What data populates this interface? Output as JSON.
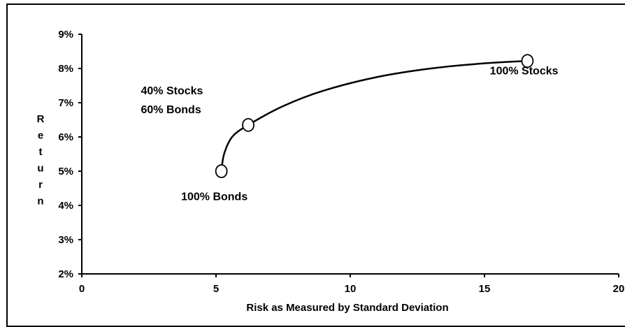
{
  "chart_data": {
    "type": "line",
    "title": "",
    "xlabel": "Risk as Measured by Standard Deviation",
    "ylabel": "Return",
    "ylabel_letters": [
      "R",
      "e",
      "t",
      "u",
      "r",
      "n"
    ],
    "xlim": [
      0,
      20
    ],
    "ylim": [
      2,
      9
    ],
    "x_ticks": [
      0,
      5,
      10,
      15,
      20
    ],
    "x_tick_labels": [
      "0",
      "5",
      "10",
      "15",
      "20"
    ],
    "y_ticks": [
      2,
      3,
      4,
      5,
      6,
      7,
      8,
      9
    ],
    "y_tick_labels": [
      "2%",
      "3%",
      "4%",
      "5%",
      "6%",
      "7%",
      "8%",
      "9%"
    ],
    "grid": false,
    "legend": "none",
    "series": [
      {
        "points": [
          {
            "x": 5.2,
            "y": 5.0
          },
          {
            "x": 5.3,
            "y": 5.5
          },
          {
            "x": 5.6,
            "y": 6.0
          },
          {
            "x": 6.2,
            "y": 6.35
          },
          {
            "x": 7.5,
            "y": 6.9
          },
          {
            "x": 9.0,
            "y": 7.35
          },
          {
            "x": 11.0,
            "y": 7.75
          },
          {
            "x": 13.0,
            "y": 8.0
          },
          {
            "x": 15.0,
            "y": 8.15
          },
          {
            "x": 16.6,
            "y": 8.22
          }
        ]
      }
    ],
    "markers": [
      {
        "x": 5.2,
        "y": 5.0
      },
      {
        "x": 6.2,
        "y": 6.35
      },
      {
        "x": 16.6,
        "y": 8.22
      }
    ],
    "annotations": [
      {
        "lines": [
          "100% Bonds"
        ],
        "x": 3.7,
        "y": 4.15
      },
      {
        "lines": [
          "40% Stocks",
          "60% Bonds"
        ],
        "x": 2.2,
        "y": 7.25
      },
      {
        "lines": [
          "100% Stocks"
        ],
        "x": 15.2,
        "y": 7.83
      }
    ],
    "colors": {
      "line": "#000000",
      "marker_fill": "#ffffff",
      "marker_stroke": "#000000"
    }
  }
}
